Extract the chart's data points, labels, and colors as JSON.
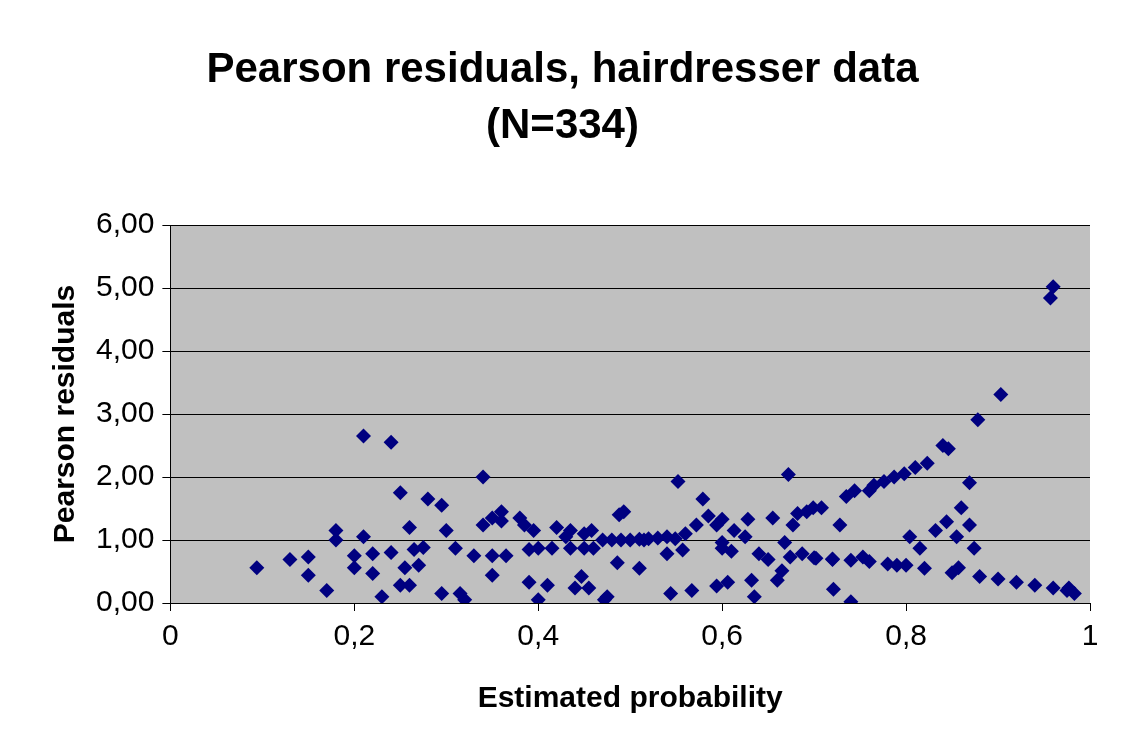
{
  "chart_data": {
    "type": "scatter",
    "title": "Pearson residuals, hairdresser data (N=334)",
    "xlabel": "Estimated probability",
    "ylabel": "Pearson residuals",
    "xlim": [
      0,
      1
    ],
    "xticks": [
      0,
      {
        "value": 0.2,
        "label": "0,2"
      },
      {
        "value": 0.4,
        "label": "0,4"
      },
      {
        "value": 0.6,
        "label": "0,6"
      },
      {
        "value": 0.8,
        "label": "0,8"
      },
      1
    ],
    "ylim": [
      0,
      6
    ],
    "yticks": [
      {
        "value": 0,
        "label": "0,00"
      },
      {
        "value": 1,
        "label": "1,00"
      },
      {
        "value": 2,
        "label": "2,00"
      },
      {
        "value": 3,
        "label": "3,00"
      },
      {
        "value": 4,
        "label": "4,00"
      },
      {
        "value": 5,
        "label": "5,00"
      },
      {
        "value": 6,
        "label": "6,00"
      }
    ],
    "grid": "y",
    "legend": false,
    "marker": "diamond",
    "series": [
      {
        "color": "#000080",
        "x": [
          0.094,
          0.13,
          0.15,
          0.15,
          0.17,
          0.18,
          0.18,
          0.2,
          0.21,
          0.2,
          0.21,
          0.24,
          0.22,
          0.22,
          0.23,
          0.24,
          0.25,
          0.25,
          0.255,
          0.26,
          0.26,
          0.265,
          0.28,
          0.275,
          0.27,
          0.295,
          0.3,
          0.295,
          0.31,
          0.315,
          0.32,
          0.33,
          0.34,
          0.34,
          0.35,
          0.36,
          0.35,
          0.35,
          0.36,
          0.365,
          0.38,
          0.385,
          0.39,
          0.39,
          0.395,
          0.4,
          0.41,
          0.4,
          0.415,
          0.42,
          0.43,
          0.435,
          0.435,
          0.44,
          0.447,
          0.45,
          0.458,
          0.45,
          0.455,
          0.46,
          0.47,
          0.472,
          0.475,
          0.48,
          0.49,
          0.5,
          0.51,
          0.52,
          0.53,
          0.54,
          0.488,
          0.493,
          0.486,
          0.51,
          0.515,
          0.544,
          0.54,
          0.552,
          0.557,
          0.549,
          0.56,
          0.567,
          0.572,
          0.579,
          0.585,
          0.594,
          0.6,
          0.6,
          0.6,
          0.606,
          0.61,
          0.594,
          0.613,
          0.625,
          0.628,
          0.632,
          0.635,
          0.64,
          0.65,
          0.655,
          0.66,
          0.665,
          0.668,
          0.672,
          0.674,
          0.677,
          0.682,
          0.687,
          0.692,
          0.699,
          0.702,
          0.708,
          0.72,
          0.721,
          0.728,
          0.735,
          0.74,
          0.744,
          0.753,
          0.76,
          0.765,
          0.776,
          0.787,
          0.798,
          0.81,
          0.823,
          0.84,
          0.846,
          0.857,
          0.878,
          0.903,
          0.869,
          0.86,
          0.832,
          0.844,
          0.815,
          0.804,
          0.855,
          0.874,
          0.869,
          0.79,
          0.82,
          0.85,
          0.88,
          0.9,
          0.92,
          0.94,
          0.96,
          0.975,
          0.7,
          0.72,
          0.74,
          0.76,
          0.78,
          0.8,
          0.957,
          0.96,
          0.983,
          0.977
        ],
        "values": [
          0.56,
          0.69,
          0.73,
          0.44,
          0.2,
          1.0,
          1.15,
          0.75,
          1.05,
          0.56,
          2.65,
          2.55,
          0.78,
          0.47,
          0.1,
          0.8,
          0.28,
          1.75,
          0.56,
          1.2,
          0.28,
          0.85,
          1.65,
          0.88,
          0.6,
          1.55,
          1.15,
          0.15,
          0.87,
          0.15,
          0.05,
          0.75,
          2.0,
          1.24,
          1.35,
          1.45,
          0.75,
          0.44,
          1.3,
          0.75,
          1.35,
          1.24,
          0.85,
          0.33,
          1.15,
          0.05,
          0.28,
          0.87,
          0.87,
          1.2,
          1.05,
          0.87,
          1.15,
          0.24,
          0.42,
          1.1,
          1.15,
          0.87,
          0.24,
          0.87,
          1.0,
          0.05,
          0.1,
          1.0,
          1.0,
          1.0,
          1.01,
          1.02,
          1.03,
          1.05,
          1.4,
          1.45,
          0.64,
          0.55,
          1.0,
          0.15,
          0.78,
          1.93,
          0.84,
          1.02,
          1.1,
          0.2,
          1.24,
          1.65,
          1.38,
          1.24,
          0.96,
          0.87,
          1.33,
          0.33,
          0.82,
          0.27,
          1.15,
          1.05,
          1.33,
          0.36,
          0.1,
          0.78,
          0.69,
          1.35,
          0.36,
          0.51,
          0.96,
          2.04,
          0.73,
          1.24,
          1.42,
          0.78,
          1.45,
          1.51,
          0.71,
          1.51,
          0.69,
          0.22,
          1.24,
          1.69,
          0.02,
          1.78,
          0.73,
          1.78,
          1.87,
          1.93,
          2.0,
          2.05,
          2.15,
          2.22,
          2.5,
          2.45,
          0.56,
          2.91,
          3.31,
          1.91,
          1.51,
          1.15,
          1.29,
          0.87,
          1.05,
          1.05,
          0.87,
          1.24,
          0.6,
          0.55,
          0.48,
          0.42,
          0.38,
          0.33,
          0.28,
          0.24,
          0.2,
          0.72,
          0.7,
          0.68,
          0.66,
          0.62,
          0.6,
          4.84,
          5.02,
          0.15,
          0.24
        ]
      }
    ]
  }
}
